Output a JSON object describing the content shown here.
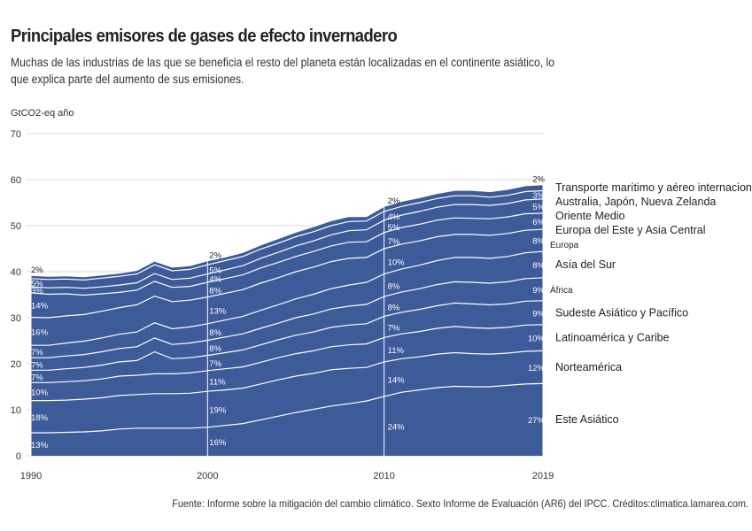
{
  "title": "Principales emisores de gases de efecto invernadero",
  "subtitle": "Muchas de las industrias de las que se beneficia el resto del planeta están localizadas en el continente asiático, lo que explica parte del aumento de sus emisiones.",
  "source": "Fuente: Informe sobre la mitigación del cambio climático. Sexto Informe de Evaluación (AR6) del IPCC. Créditos:climatica.lamarea.com.",
  "colors": {
    "area": "#3d5a99",
    "line": "#ffffff",
    "grid": "#d9d9d9",
    "text": "#333333"
  },
  "chart_data": {
    "type": "area",
    "stacked": true,
    "ylabel": "GtCO2-eq año",
    "ylim": [
      0,
      70
    ],
    "yticks": [
      0,
      10,
      20,
      30,
      40,
      50,
      60,
      70
    ],
    "xlim": [
      1990,
      2019
    ],
    "xticks": [
      1990,
      2000,
      2010,
      2019
    ],
    "grid": "horizontal",
    "markers": [
      2000,
      2010,
      2019
    ],
    "x": [
      1990,
      1991,
      1992,
      1993,
      1994,
      1995,
      1996,
      1997,
      1998,
      1999,
      2000,
      2001,
      2002,
      2003,
      2004,
      2005,
      2006,
      2007,
      2008,
      2009,
      2010,
      2011,
      2012,
      2013,
      2014,
      2015,
      2016,
      2017,
      2018,
      2019
    ],
    "series": [
      {
        "name": "Este Asiático",
        "values": [
          5.0,
          5.0,
          5.1,
          5.2,
          5.4,
          5.8,
          6.0,
          6.0,
          6.0,
          6.0,
          6.2,
          6.6,
          7.0,
          7.8,
          8.6,
          9.4,
          10.1,
          10.8,
          11.3,
          11.9,
          12.9,
          13.8,
          14.3,
          14.8,
          15.1,
          15.0,
          15.0,
          15.3,
          15.6,
          15.7
        ]
      },
      {
        "name": "Norteamérica",
        "values": [
          7.0,
          7.0,
          7.0,
          7.1,
          7.2,
          7.3,
          7.3,
          7.5,
          7.5,
          7.6,
          7.8,
          7.7,
          7.7,
          7.8,
          7.9,
          7.9,
          7.8,
          7.9,
          7.7,
          7.3,
          7.5,
          7.3,
          7.2,
          7.3,
          7.3,
          7.2,
          7.1,
          7.0,
          7.1,
          7.1
        ]
      },
      {
        "name": "Latinoamérica y Caribe",
        "values": [
          3.9,
          3.9,
          4.0,
          4.0,
          4.1,
          4.2,
          4.2,
          4.3,
          4.3,
          4.4,
          4.5,
          4.6,
          4.6,
          4.7,
          4.8,
          4.9,
          4.9,
          5.0,
          5.1,
          5.1,
          5.3,
          5.4,
          5.5,
          5.6,
          5.7,
          5.6,
          5.6,
          5.6,
          5.7,
          5.7
        ]
      },
      {
        "name": "Sudeste Asiático y Pacífico",
        "values": [
          2.7,
          2.7,
          2.8,
          2.9,
          3.0,
          3.1,
          3.2,
          4.8,
          3.3,
          3.3,
          3.3,
          3.5,
          3.7,
          3.8,
          3.9,
          4.0,
          4.1,
          4.2,
          4.3,
          4.4,
          4.6,
          4.7,
          4.8,
          4.9,
          5.1,
          5.2,
          5.1,
          5.1,
          5.2,
          5.2
        ]
      },
      {
        "name": "África",
        "values": [
          2.7,
          2.7,
          2.8,
          2.8,
          2.9,
          2.9,
          3.0,
          3.0,
          3.1,
          3.2,
          3.3,
          3.4,
          3.5,
          3.6,
          3.6,
          3.8,
          3.9,
          4.0,
          4.1,
          4.2,
          4.3,
          4.4,
          4.5,
          4.6,
          4.6,
          4.7,
          4.7,
          4.8,
          4.9,
          5.0
        ]
      },
      {
        "name": "Asía del Sur",
        "values": [
          2.7,
          2.7,
          2.8,
          2.9,
          3.0,
          3.1,
          3.2,
          3.3,
          3.4,
          3.5,
          3.6,
          3.7,
          3.8,
          3.9,
          4.0,
          4.1,
          4.3,
          4.4,
          4.6,
          4.8,
          4.9,
          5.0,
          5.1,
          5.2,
          5.3,
          5.4,
          5.4,
          5.5,
          5.6,
          5.7
        ]
      },
      {
        "name": "Europa",
        "values": [
          6.1,
          6.0,
          5.9,
          5.8,
          5.8,
          5.8,
          5.9,
          5.8,
          5.9,
          5.8,
          5.8,
          5.8,
          5.8,
          5.9,
          5.9,
          5.9,
          5.9,
          5.9,
          5.8,
          5.4,
          5.5,
          5.4,
          5.3,
          5.2,
          5.0,
          5.0,
          5.0,
          5.0,
          4.9,
          4.8
        ]
      },
      {
        "name": "Europa del Este y Asia Central",
        "values": [
          5.3,
          5.1,
          4.8,
          4.2,
          3.8,
          3.3,
          3.2,
          3.2,
          3.1,
          3.0,
          3.2,
          3.2,
          3.2,
          3.3,
          3.3,
          3.3,
          3.4,
          3.4,
          3.5,
          3.4,
          3.5,
          3.6,
          3.6,
          3.6,
          3.6,
          3.5,
          3.6,
          3.6,
          3.6,
          3.5
        ]
      },
      {
        "name": "Oriente Medio",
        "values": [
          1.3,
          1.4,
          1.4,
          1.5,
          1.5,
          1.6,
          1.6,
          1.7,
          1.7,
          1.8,
          1.8,
          1.9,
          2.0,
          2.1,
          2.2,
          2.3,
          2.3,
          2.4,
          2.5,
          2.6,
          2.7,
          2.7,
          2.8,
          2.8,
          2.9,
          3.0,
          2.9,
          2.9,
          3.0,
          3.1
        ]
      },
      {
        "name": "Australia, Japón, Nueva Zelanda",
        "values": [
          1.8,
          1.8,
          1.8,
          1.8,
          1.9,
          1.9,
          1.9,
          1.9,
          1.9,
          1.9,
          2.0,
          2.0,
          2.0,
          2.0,
          2.0,
          2.0,
          2.0,
          2.0,
          2.0,
          1.9,
          1.9,
          1.9,
          1.9,
          1.9,
          1.9,
          1.9,
          1.8,
          1.8,
          1.8,
          1.8
        ]
      },
      {
        "name": "Transporte marítimo y aéreo internacional",
        "values": [
          0.7,
          0.7,
          0.7,
          0.7,
          0.7,
          0.7,
          0.8,
          0.8,
          0.8,
          0.8,
          0.9,
          0.8,
          0.9,
          0.9,
          1.0,
          1.0,
          1.1,
          1.1,
          1.1,
          1.0,
          1.1,
          1.1,
          1.1,
          1.1,
          1.2,
          1.2,
          1.2,
          1.3,
          1.3,
          1.3
        ]
      }
    ],
    "labels_1990": [
      "13%",
      "18%",
      "10%",
      "7%",
      "7%",
      "7%",
      "16%",
      "14%",
      "3%",
      "5%",
      "2%"
    ],
    "labels_2000": [
      "16%",
      "19%",
      "11%",
      "7%",
      "8%",
      "8%",
      "13%",
      "8%",
      "4%",
      "5%",
      "2%"
    ],
    "labels_2010": [
      "24%",
      "14%",
      "11%",
      "7%",
      "8%",
      "8%",
      "10%",
      "7%",
      "5%",
      "4%",
      "2%"
    ],
    "labels_2019": [
      "27%",
      "12%",
      "10%",
      "9%",
      "9%",
      "8%",
      "8%",
      "6%",
      "5%",
      "3%",
      "2%"
    ]
  }
}
